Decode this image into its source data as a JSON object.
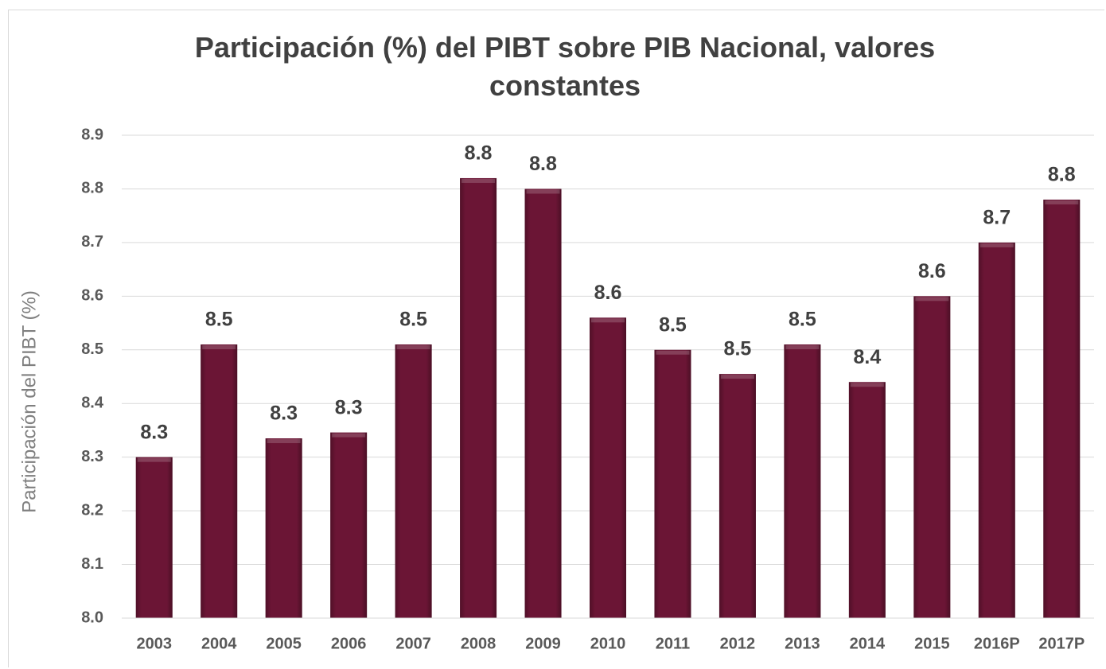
{
  "chart_data": {
    "type": "bar",
    "title": "Participación (%) del PIBT sobre PIB Nacional, valores constantes",
    "y_label": "Participación del PIBT (%)",
    "categories": [
      "2003",
      "2004",
      "2005",
      "2006",
      "2007",
      "2008",
      "2009",
      "2010",
      "2011",
      "2012",
      "2013",
      "2014",
      "2015",
      "2016P",
      "2017P"
    ],
    "values": [
      8.3,
      8.51,
      8.335,
      8.346,
      8.51,
      8.82,
      8.8,
      8.56,
      8.5,
      8.455,
      8.51,
      8.44,
      8.6,
      8.7,
      8.78
    ],
    "value_labels": [
      "8.3",
      "8.5",
      "8.3",
      "8.3",
      "8.5",
      "8.8",
      "8.8",
      "8.6",
      "8.5",
      "8.5",
      "8.5",
      "8.4",
      "8.6",
      "8.7",
      "8.8"
    ],
    "color": "#6b1535",
    "ylim": [
      8,
      8.9
    ],
    "yticks": [
      {
        "value": 8,
        "label": "8.0"
      },
      8.1,
      8.2,
      8.3,
      8.4,
      8.5,
      8.6,
      8.7,
      8.8,
      8.9
    ],
    "grid": true
  }
}
